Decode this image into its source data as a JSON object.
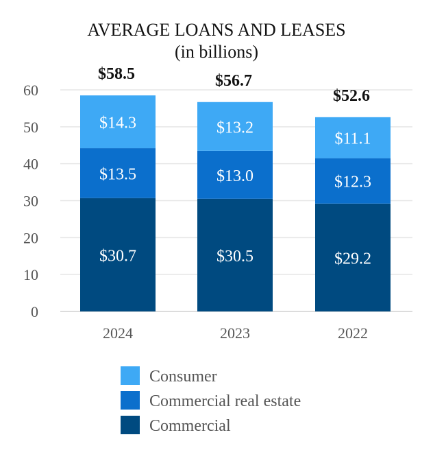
{
  "chart_data": {
    "type": "bar",
    "stacked": true,
    "title": "AVERAGE LOANS AND LEASES",
    "subtitle": "(in billions)",
    "categories": [
      "2024",
      "2023",
      "2022"
    ],
    "series": [
      {
        "name": "Commercial",
        "values": [
          30.7,
          30.5,
          29.2
        ],
        "labels": [
          "$30.7",
          "$30.5",
          "$29.2"
        ],
        "color": "#004a80"
      },
      {
        "name": "Commercial real estate",
        "values": [
          13.5,
          13.0,
          12.3
        ],
        "labels": [
          "$13.5",
          "$13.0",
          "$12.3"
        ],
        "color": "#0b6fcc"
      },
      {
        "name": "Consumer",
        "values": [
          14.3,
          13.2,
          11.1
        ],
        "labels": [
          "$14.3",
          "$13.2",
          "$11.1"
        ],
        "color": "#3ea9f5"
      }
    ],
    "totals": [
      58.5,
      56.7,
      52.6
    ],
    "total_labels": [
      "$58.5",
      "$56.7",
      "$52.6"
    ],
    "ylim": [
      0,
      60
    ],
    "yticks": [
      0,
      10,
      20,
      30,
      40,
      50,
      60
    ],
    "grid": true,
    "legend_order": [
      "Consumer",
      "Commercial real estate",
      "Commercial"
    ],
    "legend_position": "bottom"
  }
}
